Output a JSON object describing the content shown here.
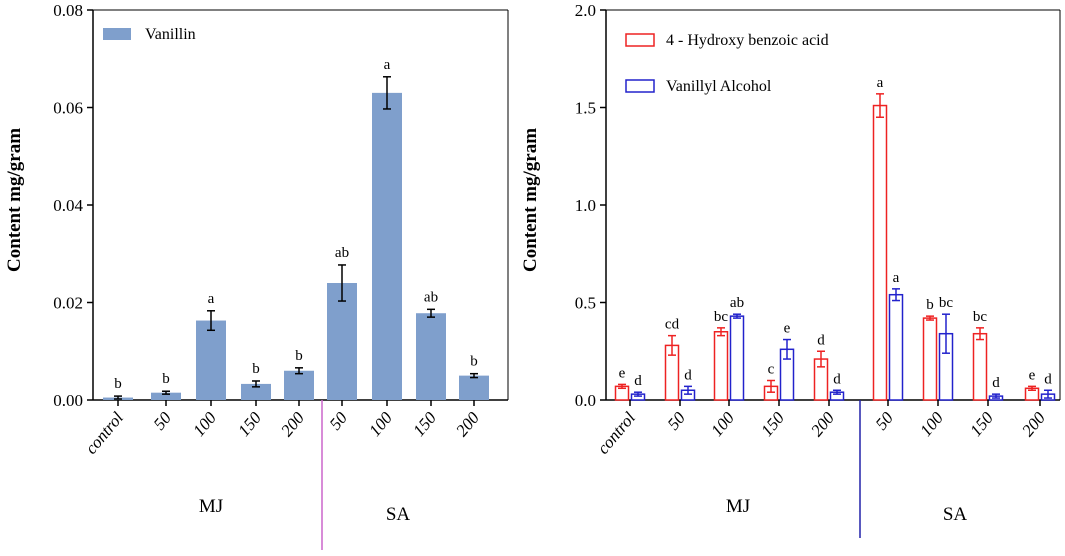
{
  "chart_data": [
    {
      "type": "bar",
      "ylabel": "Content mg/gram",
      "ylim": [
        0,
        0.08
      ],
      "yticks": [
        "0.00",
        "0.02",
        "0.04",
        "0.06",
        "0.08"
      ],
      "categories": [
        "control",
        "50",
        "100",
        "150",
        "200",
        "50",
        "100",
        "150",
        "200"
      ],
      "groups": [
        "MJ",
        "SA"
      ],
      "series": [
        {
          "name": "Vanillin",
          "color": "#7f9fcc",
          "values": [
            0.0005,
            0.0015,
            0.0163,
            0.0033,
            0.006,
            0.024,
            0.063,
            0.0178,
            0.005
          ],
          "errors": [
            0.0003,
            0.0003,
            0.002,
            0.0006,
            0.0006,
            0.0037,
            0.0033,
            0.0008,
            0.0004
          ],
          "letters": [
            "b",
            "b",
            "a",
            "b",
            "b",
            "ab",
            "a",
            "ab",
            "b"
          ]
        }
      ]
    },
    {
      "type": "bar",
      "ylabel": "Content mg/gram",
      "ylim": [
        0,
        2.0
      ],
      "yticks": [
        "0.0",
        "0.5",
        "1.0",
        "1.5",
        "2.0"
      ],
      "categories": [
        "control",
        "50",
        "100",
        "150",
        "200",
        "50",
        "100",
        "150",
        "200"
      ],
      "groups": [
        "MJ",
        "SA"
      ],
      "series": [
        {
          "name": "4 - Hydroxy benzoic acid",
          "color": "#ee2222",
          "values": [
            0.07,
            0.28,
            0.35,
            0.07,
            0.21,
            1.51,
            0.42,
            0.34,
            0.06
          ],
          "errors": [
            0.01,
            0.05,
            0.02,
            0.03,
            0.04,
            0.06,
            0.01,
            0.03,
            0.01
          ],
          "letters": [
            "e",
            "cd",
            "bc",
            "c",
            "d",
            "a",
            "b",
            "bc",
            "e"
          ]
        },
        {
          "name": "Vanillyl Alcohol",
          "color": "#2222cc",
          "values": [
            0.03,
            0.05,
            0.43,
            0.26,
            0.04,
            0.54,
            0.34,
            0.02,
            0.03
          ],
          "errors": [
            0.01,
            0.02,
            0.01,
            0.05,
            0.01,
            0.03,
            0.1,
            0.01,
            0.02
          ],
          "letters": [
            "d",
            "d",
            "ab",
            "e",
            "d",
            "a",
            "bc",
            "d",
            "d"
          ]
        }
      ]
    }
  ]
}
